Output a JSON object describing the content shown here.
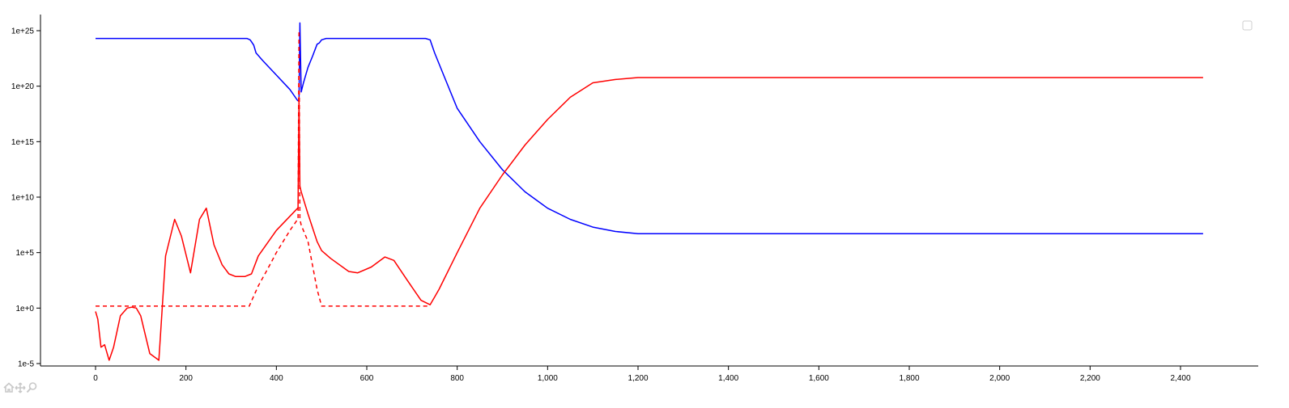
{
  "chart_data": {
    "type": "line",
    "title": "",
    "xlabel": "",
    "ylabel": "",
    "y_scale": "log",
    "xlim": [
      -120,
      2560
    ],
    "ylim": [
      1e-05,
      1e+26
    ],
    "x_ticks": [
      0,
      200,
      400,
      600,
      800,
      1000,
      1200,
      1400,
      1600,
      1800,
      2000,
      2200,
      2400
    ],
    "x_tick_labels": [
      "0",
      "200",
      "400",
      "600",
      "800",
      "1,000",
      "1,200",
      "1,400",
      "1,600",
      "1,800",
      "2,000",
      "2,200",
      "2,400"
    ],
    "y_ticks": [
      1e-05,
      1,
      100000.0,
      10000000000.0,
      1000000000000000.0,
      1e+20,
      1e+25
    ],
    "y_tick_labels": [
      "1e-5",
      "1e+0",
      "1e+5",
      "1e+10",
      "1e+15",
      "1e+20",
      "1e+25"
    ],
    "grid": false,
    "legend": "top-right",
    "colors": {
      "blue": "#0000ff",
      "red": "#ff0000"
    },
    "series": [
      {
        "color": "#0000ff",
        "style": "solid",
        "x": [
          0,
          100,
          200,
          300,
          335,
          342,
          345,
          350,
          355,
          370,
          400,
          430,
          447,
          450,
          452,
          455,
          460,
          470,
          480,
          490,
          495,
          500,
          510,
          530,
          600,
          700,
          730,
          740,
          750,
          770,
          800,
          850,
          900,
          950,
          1000,
          1050,
          1100,
          1150,
          1200,
          1300,
          1400,
          1600,
          1800,
          2000,
          2200,
          2450
        ],
        "y": [
          2e+24,
          2e+24,
          2e+24,
          2e+24,
          2e+24,
          1.5e+24,
          1e+24,
          5e+23,
          1e+23,
          2e+22,
          1e+21,
          5e+19,
          5e+18,
          5e+18,
          5e+25,
          3e+19,
          2e+20,
          5e+21,
          5e+22,
          6e+23,
          8e+23,
          1.5e+24,
          2e+24,
          2e+24,
          2e+24,
          2e+24,
          2e+24,
          1.5e+24,
          1e+23,
          1e+21,
          1e+18,
          1000000000000000.0,
          3000000000000.0,
          30000000000.0,
          1000000000.0,
          100000000.0,
          20000000.0,
          8000000.0,
          5000000.0,
          5000000.0,
          5000000.0,
          5000000.0,
          5000000.0,
          5000000.0,
          5000000.0,
          5000000.0
        ]
      },
      {
        "color": "#ff0000",
        "style": "solid",
        "x": [
          0,
          5,
          12,
          20,
          30,
          40,
          55,
          70,
          80,
          90,
          100,
          120,
          140,
          155,
          175,
          190,
          210,
          230,
          245,
          262,
          280,
          295,
          310,
          330,
          345,
          360,
          400,
          447,
          448,
          450,
          452,
          455,
          470,
          490,
          500,
          520,
          560,
          580,
          610,
          640,
          660,
          690,
          720,
          740,
          750,
          760,
          800,
          850,
          900,
          950,
          1000,
          1050,
          1100,
          1150,
          1200,
          1300,
          1500,
          2000,
          2450
        ],
        "y": [
          0.5,
          0.1,
          0.0003,
          0.0005,
          2e-05,
          0.0003,
          0.2,
          1,
          1.2,
          1,
          0.2,
          8e-05,
          2e-05,
          50000,
          100000000.0,
          3000000.0,
          1500,
          100000000.0,
          1000000000.0,
          500000.0,
          8000,
          1200,
          700,
          700,
          1200,
          50000,
          10000000.0,
          1000000000.0,
          1000000000.0,
          1e+19,
          100000000000.0,
          30000000000.0,
          300000000.0,
          1000000.0,
          150000.0,
          30000,
          2000,
          1500,
          5000,
          40000,
          20000,
          300,
          5,
          2,
          10,
          50,
          100000.0,
          1000000000.0,
          1000000000000.0,
          500000000000000.0,
          1e+17,
          1e+19,
          2e+20,
          4e+20,
          6e+20,
          6e+20,
          6e+20,
          6e+20,
          6e+20
        ]
      },
      {
        "color": "#ff0000",
        "style": "dashed",
        "x": [
          0,
          100,
          200,
          300,
          340,
          360,
          380,
          400,
          430,
          447,
          448,
          450,
          452,
          455,
          470,
          490,
          500,
          510,
          600,
          700,
          740
        ],
        "y": [
          1.5,
          1.5,
          1.5,
          1.5,
          1.5,
          100,
          3000,
          100000.0,
          10000000.0,
          100000000.0,
          100000000.0,
          1e+25,
          100000000.0,
          30000000.0,
          1000000.0,
          50,
          1.5,
          1.5,
          1.5,
          1.5,
          1.5
        ]
      }
    ]
  }
}
